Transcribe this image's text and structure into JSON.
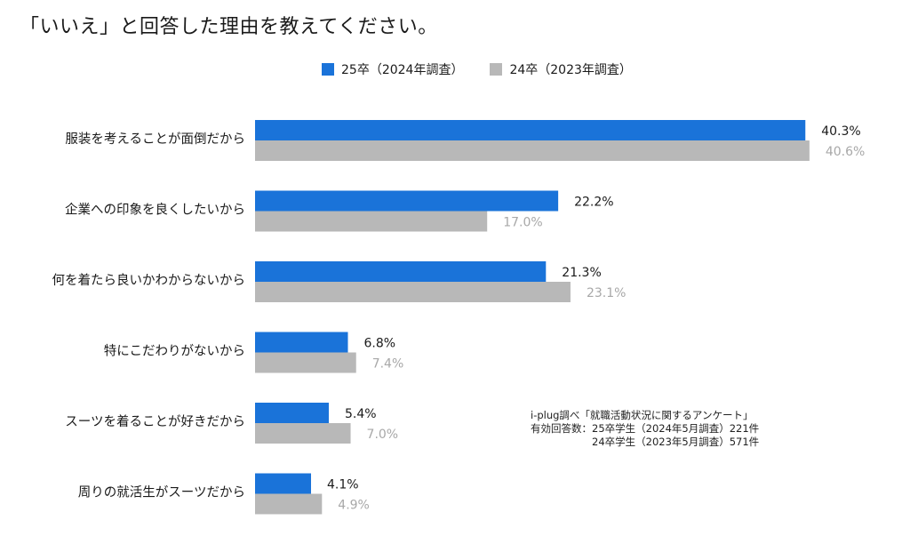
{
  "chart_data": {
    "type": "bar",
    "orientation": "horizontal",
    "title": "「いいえ」と回答した理由を教えてください。",
    "categories": [
      "服装を考えることが面倒だから",
      "企業への印象を良くしたいから",
      "何を着たら良いかわからないから",
      "特にこだわりがないから",
      "スーツを着ることが好きだから",
      "周りの就活生がスーツだから"
    ],
    "series": [
      {
        "name": "25卒（2024年調査）",
        "values": [
          40.3,
          22.2,
          21.3,
          6.8,
          5.4,
          4.1
        ],
        "color": "#1a73d9",
        "label_color": "#1a1a1a"
      },
      {
        "name": "24卒（2023年調査）",
        "values": [
          40.6,
          17.0,
          23.1,
          7.4,
          7.0,
          4.9
        ],
        "color": "#b8b8b8",
        "label_color": "#a8a8a8"
      }
    ],
    "value_suffix": "%",
    "xlim": [
      0,
      41
    ],
    "grid": false,
    "legend_position": "top-center"
  },
  "note": {
    "line1": "i-plug調べ「就職活動状況に関するアンケート」",
    "line2": "有効回答数：25卒学生（2024年5月調査）221件",
    "line3": "　　　　　　24卒学生（2023年5月調査）571件"
  }
}
